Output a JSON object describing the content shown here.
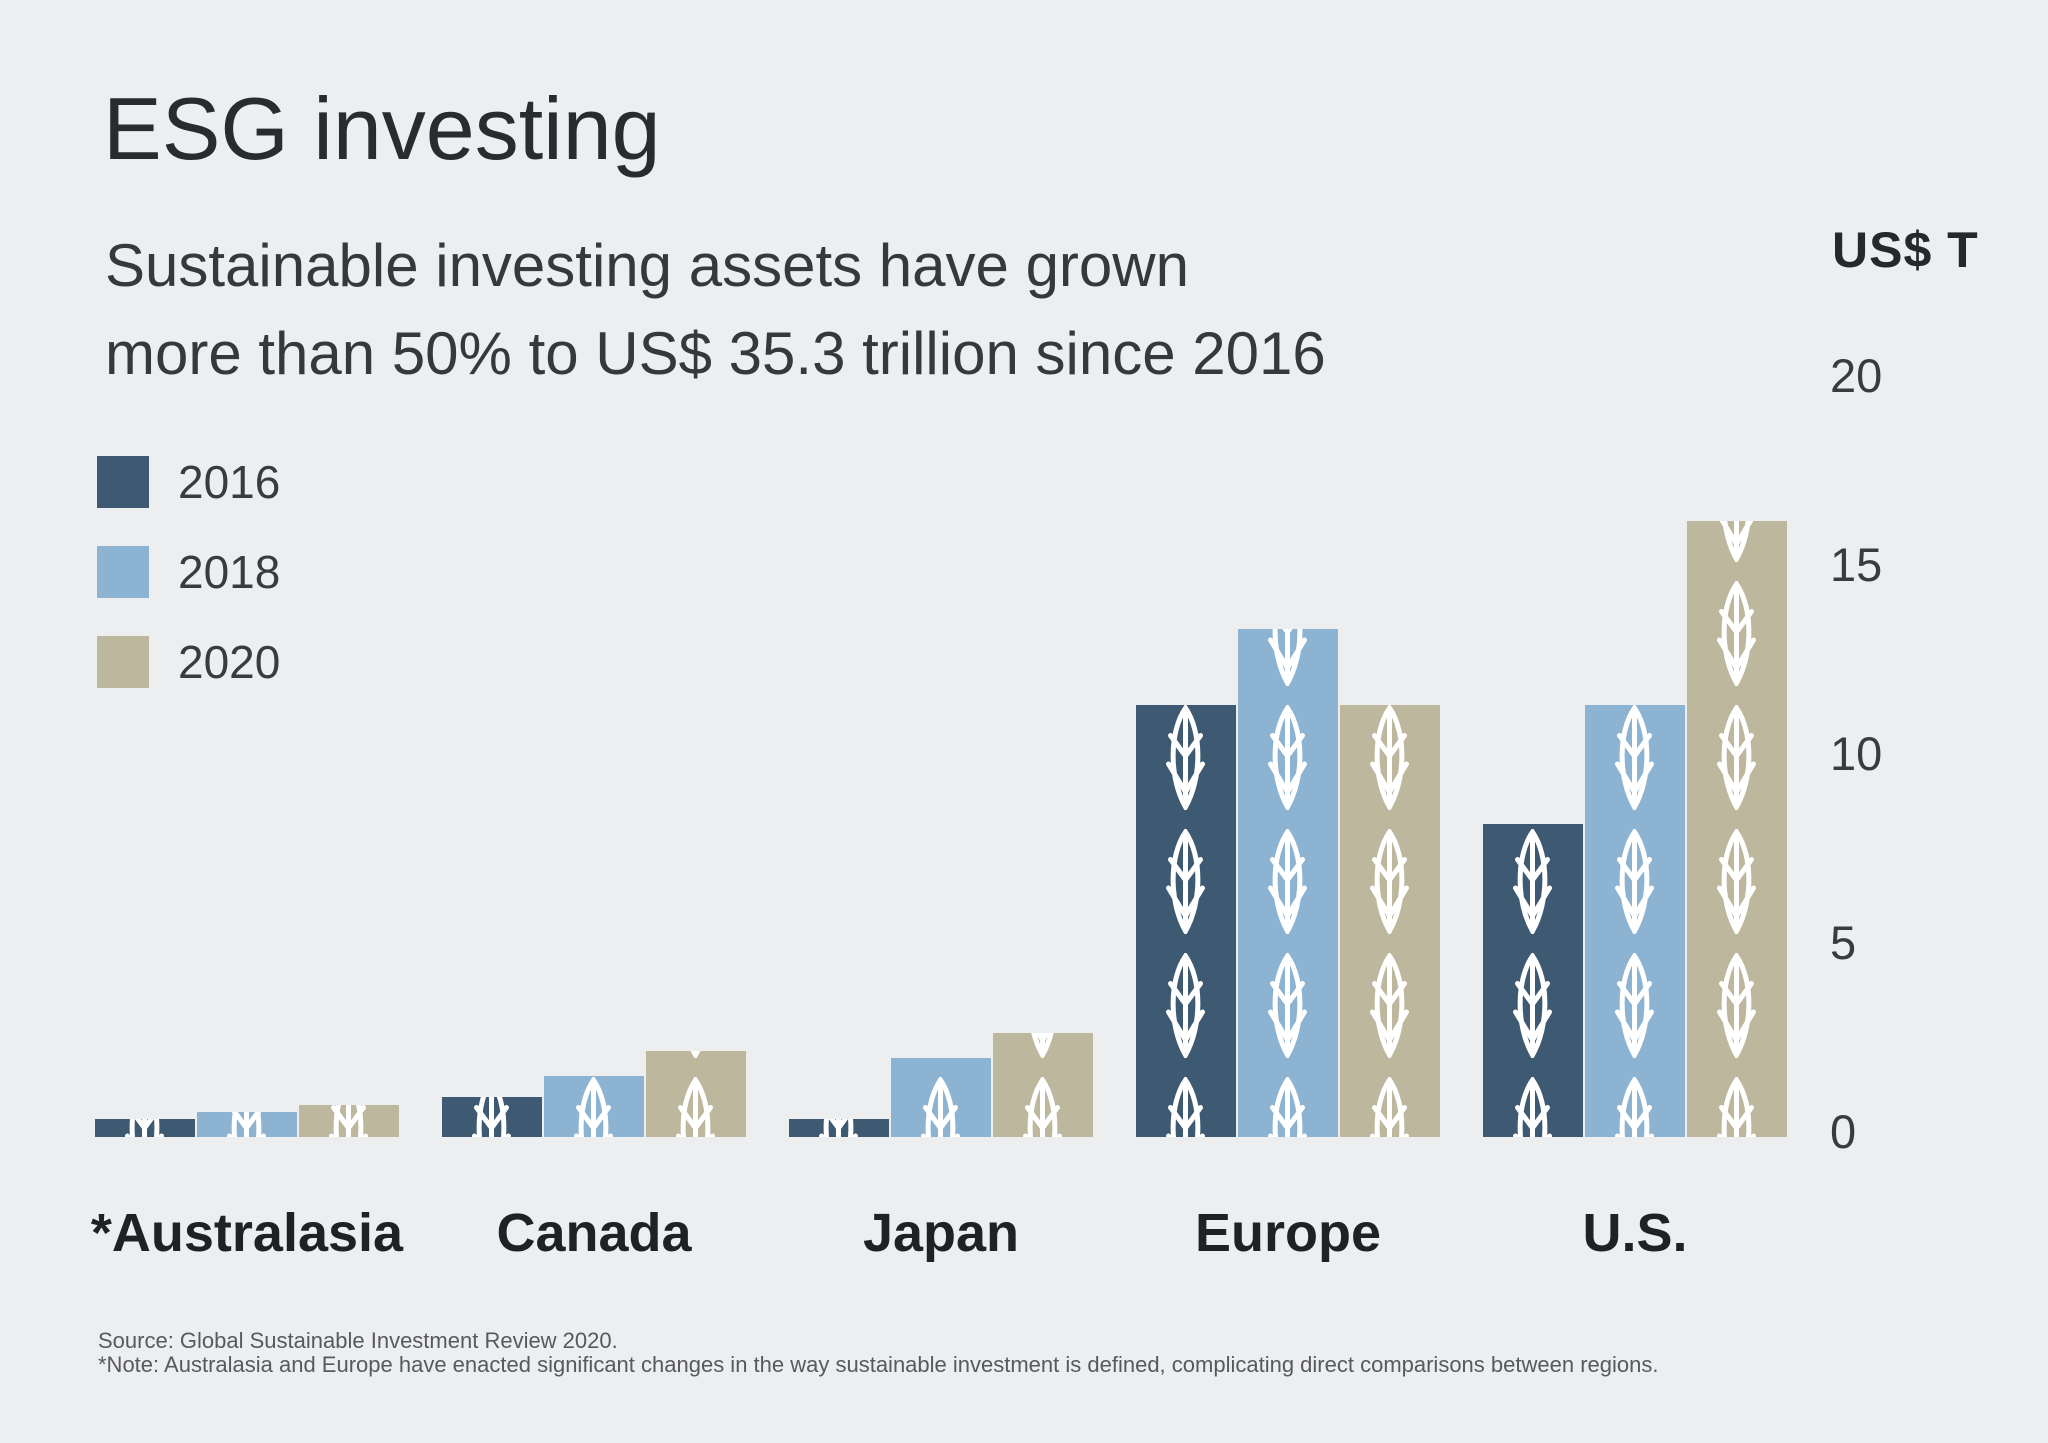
{
  "header": {
    "title": "ESG investing",
    "subtitle_line1": "Sustainable investing assets have grown",
    "subtitle_line2": "more than 50% to US$ 35.3 trillion since 2016"
  },
  "axis": {
    "unit_label": "US$ T",
    "ticks": [
      20,
      15,
      10,
      5,
      0
    ]
  },
  "legend": [
    {
      "label": "2016",
      "color": "#3d5a72"
    },
    {
      "label": "2018",
      "color": "#8db3d2"
    },
    {
      "label": "2020",
      "color": "#bdb79d"
    }
  ],
  "chart_data": {
    "type": "bar",
    "title": "ESG investing",
    "subtitle": "Sustainable investing assets have grown more than 50% to US$ 35.3 trillion since 2016",
    "categories": [
      "*Australasia",
      "Canada",
      "Japan",
      "Europe",
      "U.S."
    ],
    "series": [
      {
        "name": "2016",
        "color": "#3d5a72",
        "values": [
          0.5,
          1.1,
          0.5,
          12.0,
          8.7
        ]
      },
      {
        "name": "2018",
        "color": "#8db3d2",
        "values": [
          0.7,
          1.7,
          2.2,
          14.1,
          12.0
        ]
      },
      {
        "name": "2020",
        "color": "#bdb79d",
        "values": [
          0.9,
          2.4,
          2.9,
          12.0,
          17.1
        ]
      }
    ],
    "xlabel": "",
    "ylabel": "US$ T",
    "ylim": [
      0,
      20
    ],
    "grid": false,
    "legend_position": "top-left",
    "bar_pattern": "leaf-outline"
  },
  "footnote": {
    "source": "Source: Global Sustainable Investment Review 2020.",
    "note": "*Note: Australasia and Europe have enacted significant changes in the way sustainable investment is defined, complicating direct comparisons between regions."
  },
  "colors": {
    "background": "#edeef0",
    "leaf_stroke": "#ffffff",
    "text_dark": "#292b2f",
    "text_gray": "#58595c"
  }
}
